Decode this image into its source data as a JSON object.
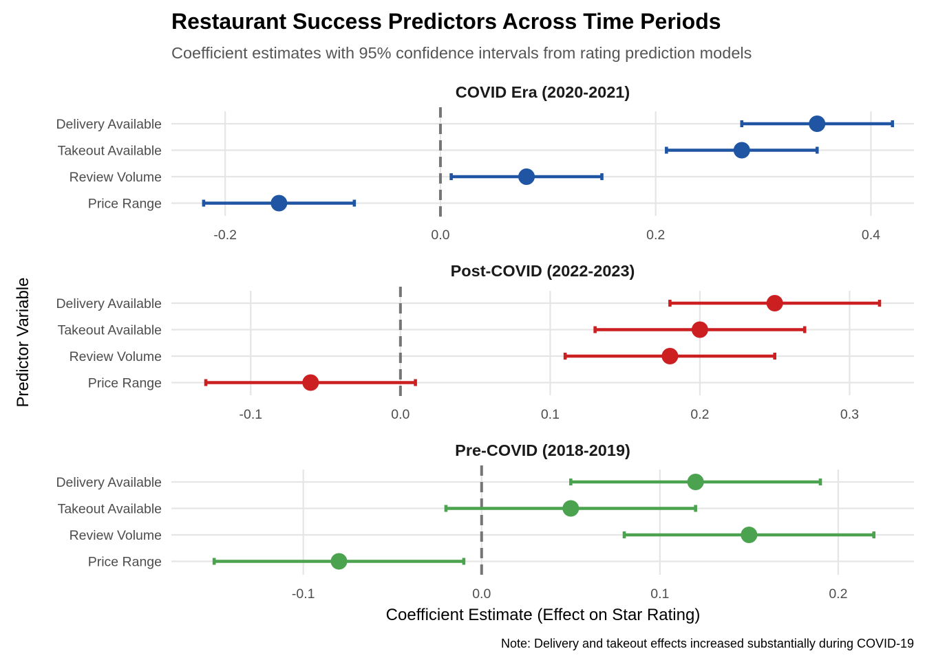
{
  "chart_data": {
    "type": "scatter",
    "title": "Restaurant Success Predictors Across Time Periods",
    "subtitle": "Coefficient estimates with 95% confidence intervals from rating prediction models",
    "xlabel": "Coefficient Estimate (Effect on Star Rating)",
    "ylabel": "Predictor Variable",
    "caption": "Note: Delivery and takeout effects increased substantially during COVID-19",
    "grid": true,
    "legend": "none",
    "reference_line": {
      "x": 0,
      "style": "dashed",
      "color": "#757575"
    },
    "categories": [
      "Delivery Available",
      "Takeout Available",
      "Review Volume",
      "Price Range"
    ],
    "panels": [
      {
        "name": "COVID Era (2020-2021)",
        "color": "#1f55a3",
        "xlim": [
          -0.25,
          0.44
        ],
        "ticks": [
          -0.2,
          0.0,
          0.2,
          0.4
        ],
        "tick_labels": [
          "-0.2",
          "0.0",
          "0.2",
          "0.4"
        ],
        "points": [
          {
            "category": "Delivery Available",
            "estimate": 0.35,
            "ci_low": 0.28,
            "ci_high": 0.42
          },
          {
            "category": "Takeout Available",
            "estimate": 0.28,
            "ci_low": 0.21,
            "ci_high": 0.35
          },
          {
            "category": "Review Volume",
            "estimate": 0.08,
            "ci_low": 0.01,
            "ci_high": 0.15
          },
          {
            "category": "Price Range",
            "estimate": -0.15,
            "ci_low": -0.22,
            "ci_high": -0.08
          }
        ]
      },
      {
        "name": "Post-COVID (2022-2023)",
        "color": "#cc1f22",
        "xlim": [
          -0.153,
          0.343
        ],
        "ticks": [
          -0.1,
          0.0,
          0.1,
          0.2,
          0.3
        ],
        "tick_labels": [
          "-0.1",
          "0.0",
          "0.1",
          "0.2",
          "0.3"
        ],
        "points": [
          {
            "category": "Delivery Available",
            "estimate": 0.25,
            "ci_low": 0.18,
            "ci_high": 0.32
          },
          {
            "category": "Takeout Available",
            "estimate": 0.2,
            "ci_low": 0.13,
            "ci_high": 0.27
          },
          {
            "category": "Review Volume",
            "estimate": 0.18,
            "ci_low": 0.11,
            "ci_high": 0.25
          },
          {
            "category": "Price Range",
            "estimate": -0.06,
            "ci_low": -0.13,
            "ci_high": 0.01
          }
        ]
      },
      {
        "name": "Pre-COVID (2018-2019)",
        "color": "#4ba24f",
        "xlim": [
          -0.174,
          0.2425
        ],
        "ticks": [
          -0.1,
          0.0,
          0.1,
          0.2
        ],
        "tick_labels": [
          "-0.1",
          "0.0",
          "0.1",
          "0.2"
        ],
        "points": [
          {
            "category": "Delivery Available",
            "estimate": 0.12,
            "ci_low": 0.05,
            "ci_high": 0.19
          },
          {
            "category": "Takeout Available",
            "estimate": 0.05,
            "ci_low": -0.02,
            "ci_high": 0.12
          },
          {
            "category": "Review Volume",
            "estimate": 0.15,
            "ci_low": 0.08,
            "ci_high": 0.22
          },
          {
            "category": "Price Range",
            "estimate": -0.08,
            "ci_low": -0.15,
            "ci_high": -0.01
          }
        ]
      }
    ]
  }
}
